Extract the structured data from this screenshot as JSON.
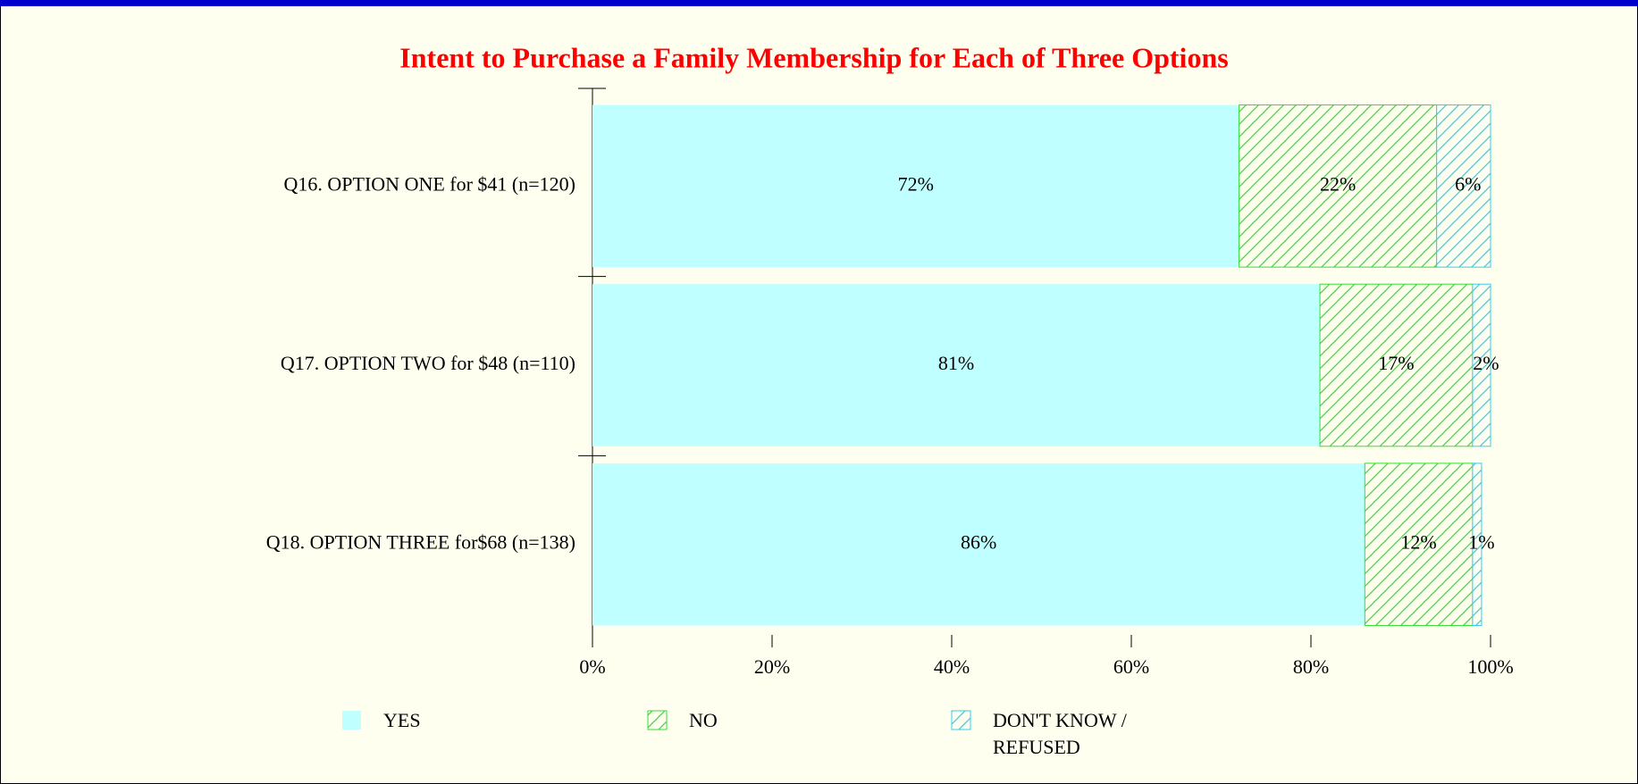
{
  "chart_data": {
    "type": "stacked_barh",
    "title": "Intent to Purchase a Family Membership for Each of Three Options",
    "categories": [
      "Q16. OPTION ONE for $41 (n=120)",
      "Q17. OPTION TWO for $48 (n=110)",
      "Q18. OPTION THREE for$68 (n=138)"
    ],
    "series": [
      {
        "name": "YES",
        "color": "#c0ffff",
        "pattern": "solid",
        "values": [
          72,
          81,
          86
        ],
        "value_labels": [
          "72%",
          "81%",
          "86%"
        ]
      },
      {
        "name": "NO",
        "color": "#33dd33",
        "pattern": "hatch",
        "values": [
          22,
          17,
          12
        ],
        "value_labels": [
          "22%",
          "17%",
          "12%"
        ]
      },
      {
        "name": "DON'T KNOW / REFUSED",
        "color": "#33ccee",
        "pattern": "hatch",
        "values": [
          6,
          2,
          1
        ],
        "value_labels": [
          "6%",
          "2%",
          "1%"
        ]
      }
    ],
    "xlim": [
      0,
      100
    ],
    "xticks": [
      {
        "value": 0,
        "label": "0%"
      },
      {
        "value": 20,
        "label": "20%"
      },
      {
        "value": 40,
        "label": "40%"
      },
      {
        "value": 60,
        "label": "60%"
      },
      {
        "value": 80,
        "label": "80%"
      },
      {
        "value": 100,
        "label": "100%"
      }
    ]
  }
}
